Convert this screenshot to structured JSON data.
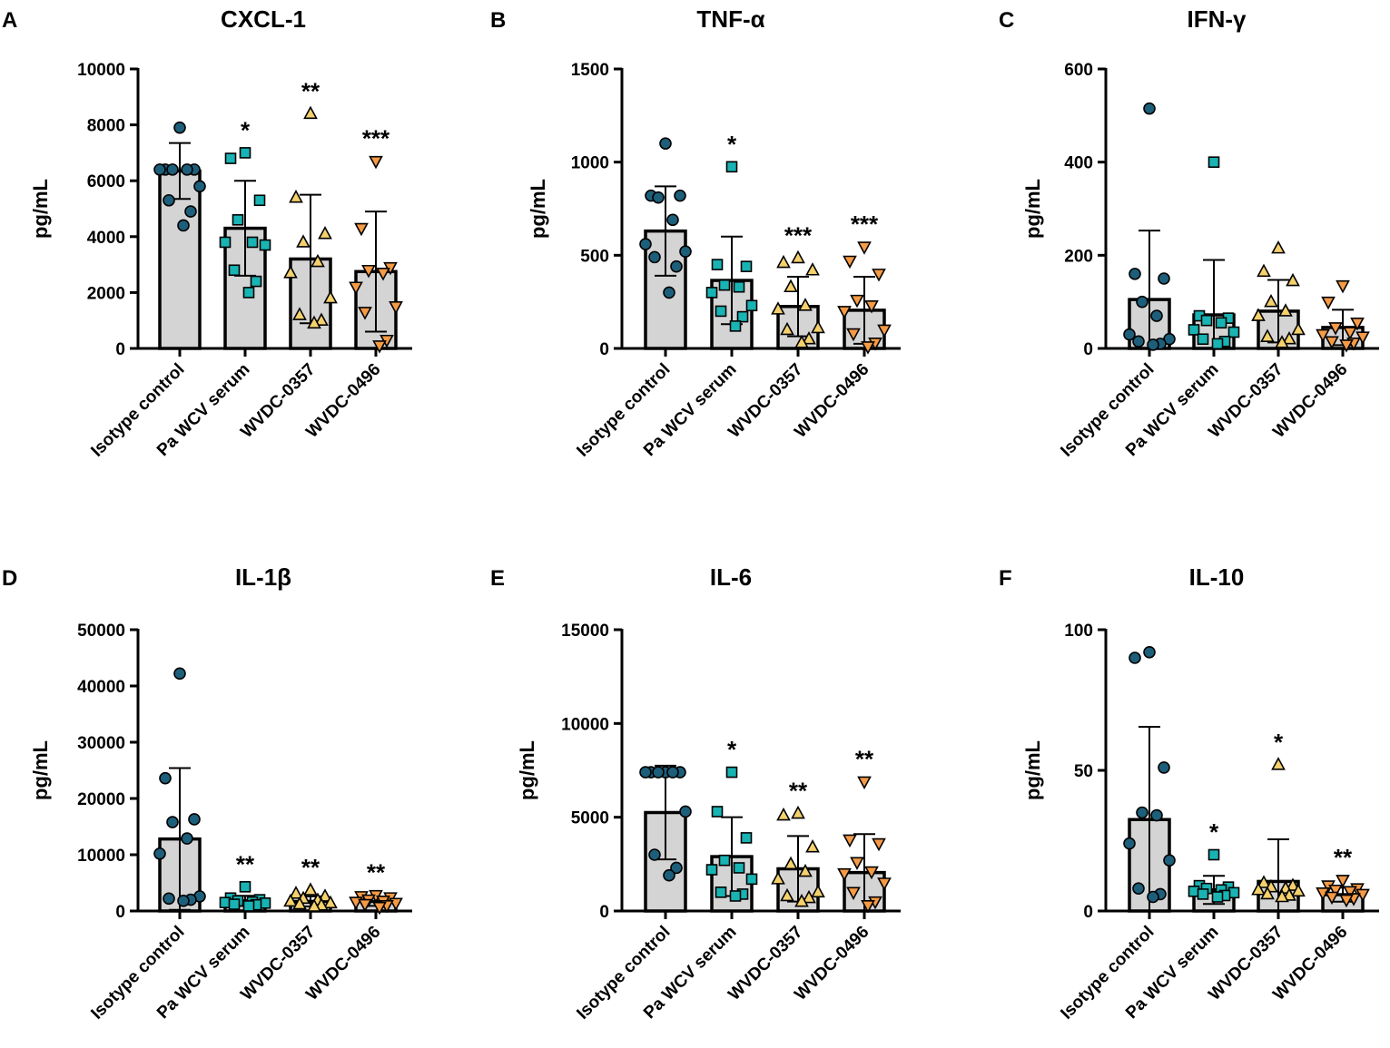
{
  "colors": {
    "Isotype control": "#1d5f7a",
    "Pa WCV serum": "#19b3b3",
    "WVDC-0357": "#f4d16d",
    "WVDC-0496": "#f59a45",
    "bar_fill": "#d4d4d4"
  },
  "markers": {
    "Isotype control": "circle",
    "Pa WCV serum": "square",
    "WVDC-0357": "triangle-up",
    "WVDC-0496": "triangle-down"
  },
  "chart_data": [
    {
      "panel": "A",
      "type": "bar",
      "title": "CXCL-1",
      "ylabel": "pg/mL",
      "ylim": [
        0,
        10000
      ],
      "yticks": [
        0,
        2000,
        4000,
        6000,
        8000,
        10000
      ],
      "categories": [
        "Isotype control",
        "Pa WCV serum",
        "WVDC-0357",
        "WVDC-0496"
      ],
      "means": [
        6350,
        4300,
        3200,
        2750
      ],
      "sd": [
        1000,
        1700,
        2300,
        2150
      ],
      "significance": [
        "",
        "*",
        "**",
        "***"
      ],
      "points": [
        [
          7900,
          6400,
          6400,
          6400,
          6400,
          6400,
          5800,
          5300,
          4900,
          4400
        ],
        [
          7000,
          6800,
          5300,
          4600,
          3800,
          3800,
          3700,
          2800,
          2400,
          2000
        ],
        [
          8400,
          5400,
          4100,
          3800,
          3100,
          2700,
          1800,
          1200,
          1000,
          900
        ],
        [
          6700,
          4300,
          2900,
          2800,
          2700,
          2200,
          1500,
          1300,
          300,
          100
        ]
      ]
    },
    {
      "panel": "B",
      "type": "bar",
      "title": "TNF-α",
      "ylabel": "pg/mL",
      "ylim": [
        0,
        1500
      ],
      "yticks": [
        0,
        500,
        1000,
        1500
      ],
      "categories": [
        "Isotype control",
        "Pa WCV serum",
        "WVDC-0357",
        "WVDC-0496"
      ],
      "means": [
        630,
        365,
        225,
        205
      ],
      "sd": [
        240,
        235,
        160,
        180
      ],
      "significance": [
        "",
        "*",
        "***",
        "***"
      ],
      "points": [
        [
          1100,
          820,
          820,
          810,
          690,
          560,
          520,
          490,
          440,
          300
        ],
        [
          975,
          450,
          440,
          340,
          330,
          300,
          230,
          200,
          170,
          120
        ],
        [
          485,
          460,
          420,
          330,
          230,
          210,
          110,
          100,
          50,
          30
        ],
        [
          545,
          470,
          400,
          260,
          230,
          200,
          100,
          80,
          30,
          10
        ]
      ]
    },
    {
      "panel": "C",
      "type": "bar",
      "title": "IFN-γ",
      "ylabel": "pg/mL",
      "ylim": [
        0,
        600
      ],
      "yticks": [
        0,
        200,
        400,
        600
      ],
      "categories": [
        "Isotype control",
        "Pa WCV serum",
        "WVDC-0357",
        "WVDC-0496"
      ],
      "means": [
        105,
        72,
        80,
        45
      ],
      "sd": [
        148,
        118,
        67,
        38
      ],
      "significance": [
        "",
        "",
        "",
        ""
      ],
      "points": [
        [
          515,
          160,
          150,
          100,
          70,
          30,
          20,
          15,
          10,
          8
        ],
        [
          400,
          70,
          65,
          60,
          55,
          40,
          35,
          20,
          15,
          10
        ],
        [
          215,
          165,
          145,
          100,
          80,
          70,
          40,
          25,
          20,
          12
        ],
        [
          135,
          100,
          55,
          45,
          35,
          30,
          25,
          15,
          12,
          8
        ]
      ]
    },
    {
      "panel": "D",
      "type": "bar",
      "title": "IL-1β",
      "ylabel": "pg/mL",
      "ylim": [
        0,
        50000
      ],
      "yticks": [
        0,
        10000,
        20000,
        30000,
        40000,
        50000
      ],
      "categories": [
        "Isotype control",
        "Pa WCV serum",
        "WVDC-0357",
        "WVDC-0496"
      ],
      "means": [
        12800,
        1800,
        1700,
        1700
      ],
      "sd": [
        12600,
        900,
        900,
        800
      ],
      "significance": [
        "",
        "**",
        "**",
        "**"
      ],
      "points": [
        [
          42200,
          23600,
          16300,
          15800,
          12900,
          10200,
          2600,
          2200,
          2000,
          1800
        ],
        [
          4300,
          2300,
          2000,
          1800,
          1600,
          1500,
          1400,
          1200,
          1100,
          900
        ],
        [
          3700,
          3100,
          2600,
          2200,
          1900,
          1700,
          1400,
          1200,
          1000,
          800
        ],
        [
          2800,
          2600,
          2400,
          2000,
          1800,
          1600,
          1400,
          1200,
          1000,
          700
        ]
      ]
    },
    {
      "panel": "E",
      "type": "bar",
      "title": "IL-6",
      "ylabel": "pg/mL",
      "ylim": [
        0,
        15000
      ],
      "yticks": [
        0,
        5000,
        10000,
        15000
      ],
      "categories": [
        "Isotype control",
        "Pa WCV serum",
        "WVDC-0357",
        "WVDC-0496"
      ],
      "means": [
        5250,
        2900,
        2250,
        2050
      ],
      "sd": [
        2500,
        2100,
        1750,
        2050
      ],
      "significance": [
        "",
        "*",
        "**",
        "**"
      ],
      "points": [
        [
          7400,
          7400,
          7400,
          7400,
          7400,
          7400,
          5300,
          3000,
          2300,
          1900
        ],
        [
          7400,
          5300,
          3900,
          2700,
          2300,
          2200,
          1700,
          1000,
          900,
          800
        ],
        [
          5200,
          5100,
          3400,
          2500,
          2100,
          1700,
          1000,
          800,
          700,
          500
        ],
        [
          6900,
          3800,
          3600,
          2600,
          2100,
          2000,
          1500,
          1000,
          500,
          300
        ]
      ]
    },
    {
      "panel": "F",
      "type": "bar",
      "title": "IL-10",
      "ylabel": "pg/mL",
      "ylim": [
        0,
        100
      ],
      "yticks": [
        0,
        50,
        100
      ],
      "categories": [
        "Isotype control",
        "Pa WCV serum",
        "WVDC-0357",
        "WVDC-0496"
      ],
      "means": [
        32.5,
        7.5,
        10.5,
        5.8
      ],
      "sd": [
        33,
        5,
        15,
        2.5
      ],
      "significance": [
        "",
        "*",
        "*",
        "**"
      ],
      "points": [
        [
          92,
          90,
          51,
          35,
          34,
          24,
          18,
          8,
          6,
          5
        ],
        [
          20,
          9,
          8.5,
          8,
          7.5,
          7,
          6.5,
          6,
          5.5,
          5
        ],
        [
          52,
          10,
          9,
          8.5,
          8,
          7.5,
          7,
          6,
          5.5,
          5
        ],
        [
          11,
          9,
          8,
          7.5,
          7,
          6.5,
          6,
          5,
          4.5,
          4
        ]
      ]
    }
  ]
}
